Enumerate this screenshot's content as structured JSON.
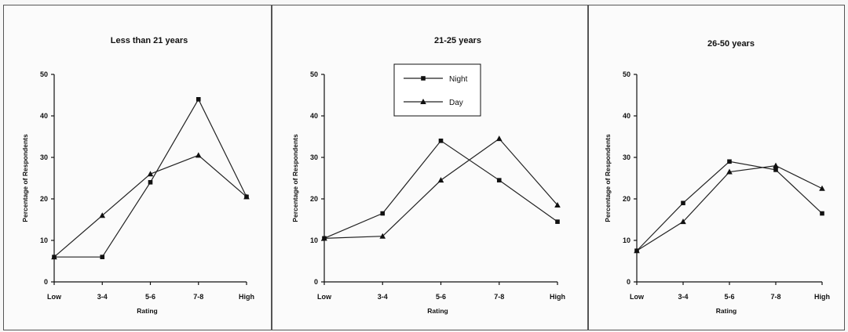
{
  "chart_data": [
    {
      "type": "line",
      "title": "Less than 21 years",
      "xlabel": "Rating",
      "ylabel": "Percentage of Respondents",
      "categories": [
        "Low",
        "3-4",
        "5-6",
        "7-8",
        "High"
      ],
      "ylim": [
        0,
        50
      ],
      "yticks": [
        "0",
        "10",
        "20",
        "30",
        "40",
        "50"
      ],
      "series": [
        {
          "name": "Night",
          "marker": "square",
          "values": [
            6,
            6,
            24,
            44,
            20.5
          ]
        },
        {
          "name": "Day",
          "marker": "triangle",
          "values": [
            6,
            16,
            26,
            30.5,
            20.5
          ]
        }
      ],
      "legend": null
    },
    {
      "type": "line",
      "title": "21-25 years",
      "xlabel": "Rating",
      "ylabel": "Percentage of Respondents",
      "categories": [
        "Low",
        "3-4",
        "5-6",
        "7-8",
        "High"
      ],
      "ylim": [
        0,
        50
      ],
      "yticks": [
        "0",
        "10",
        "20",
        "30",
        "40",
        "50"
      ],
      "series": [
        {
          "name": "Night",
          "marker": "square",
          "values": [
            10.5,
            16.5,
            34,
            24.5,
            14.5
          ]
        },
        {
          "name": "Day",
          "marker": "triangle",
          "values": [
            10.5,
            11,
            24.5,
            34.5,
            18.5
          ]
        }
      ],
      "legend": "top-center"
    },
    {
      "type": "line",
      "title": "26-50 years",
      "xlabel": "Rating",
      "ylabel": "Percentage of Respondents",
      "categories": [
        "Low",
        "3-4",
        "5-6",
        "7-8",
        "High"
      ],
      "ylim": [
        0,
        50
      ],
      "yticks": [
        "0",
        "10",
        "20",
        "30",
        "40",
        "50"
      ],
      "series": [
        {
          "name": "Night",
          "marker": "square",
          "values": [
            7.5,
            19,
            29,
            27,
            16.5
          ]
        },
        {
          "name": "Day",
          "marker": "triangle",
          "values": [
            7.5,
            14.5,
            26.5,
            28,
            22.5
          ]
        }
      ],
      "legend": null
    }
  ]
}
